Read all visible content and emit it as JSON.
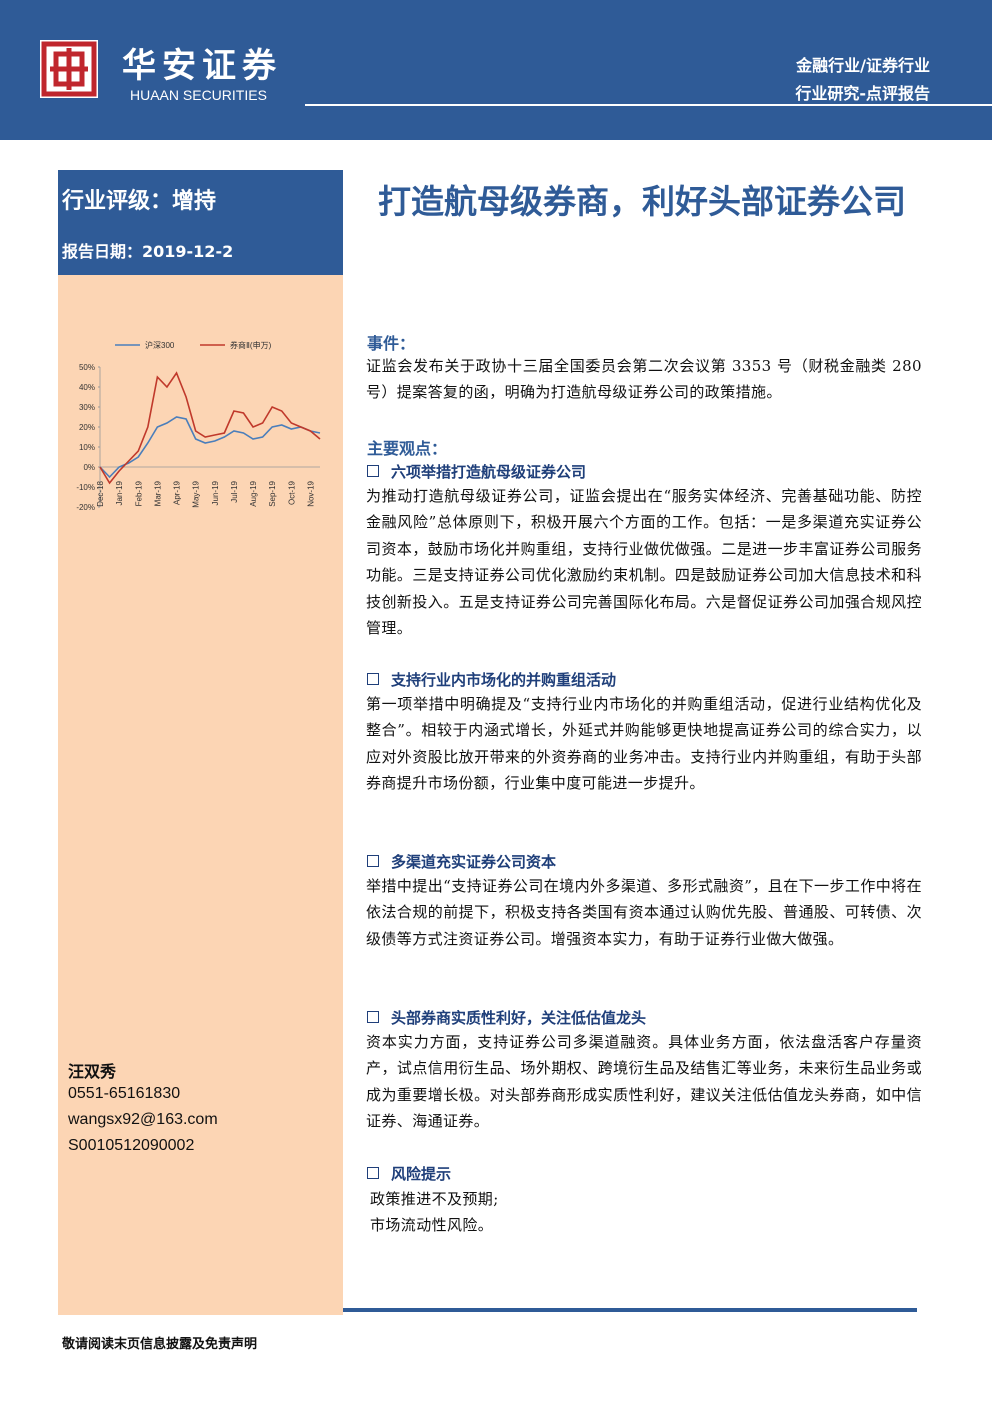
{
  "header": {
    "logo_cn": "华安证券",
    "logo_en": "HUAAN SECURITIES",
    "industry": "金融行业/证券行业",
    "report_type": "行业研究-点评报告"
  },
  "sidebar": {
    "rating": "行业评级：增持",
    "date": "报告日期：2019-12-2",
    "chart": {
      "type": "line",
      "categories": [
        "Dec-18",
        null,
        "Jan-19",
        null,
        "Feb-19",
        null,
        "Mar-19",
        null,
        "Apr-19",
        null,
        "May-19",
        null,
        "Jun-19",
        null,
        "Jul-19",
        null,
        "Aug-19",
        null,
        "Sep-19",
        null,
        "Oct-19",
        null,
        "Nov-19",
        null
      ],
      "series": [
        {
          "name": "沪深300",
          "color": "#4a7ebb",
          "values": [
            0,
            -5,
            0,
            2,
            5,
            12,
            20,
            22,
            25,
            24,
            14,
            12,
            13,
            15,
            18,
            17,
            14,
            15,
            20,
            21,
            19,
            20,
            18,
            17
          ]
        },
        {
          "name": "券商Ⅱ(申万)",
          "color": "#c0392b",
          "values": [
            0,
            -8,
            -2,
            3,
            8,
            20,
            45,
            40,
            47,
            35,
            18,
            15,
            16,
            17,
            28,
            27,
            20,
            22,
            30,
            28,
            22,
            20,
            18,
            14
          ]
        }
      ],
      "ylim": [
        -20,
        50
      ],
      "yticks": [
        {
          "value": -20,
          "label": "-20%"
        },
        {
          "value": -10,
          "label": "-10%"
        },
        {
          "value": 0,
          "label": "0%"
        },
        {
          "value": 10,
          "label": "10%"
        },
        {
          "value": 20,
          "label": "20%"
        },
        {
          "value": 30,
          "label": "30%"
        },
        {
          "value": 40,
          "label": "40%"
        },
        {
          "value": 50,
          "label": "50%"
        }
      ]
    },
    "author": {
      "name": "汪双秀",
      "phone": "0551-65161830",
      "email": "wangsx92@163.com",
      "license": "S0010512090002"
    }
  },
  "title": "打造航母级券商，利好头部证券公司",
  "event": {
    "heading": "事件：",
    "body": "证监会发布关于政协十三届全国委员会第二次会议第 3353 号（财税金融类 280 号）提案答复的函，明确为打造航母级证券公司的政策措施。"
  },
  "main": {
    "heading": "主要观点：",
    "points": [
      {
        "heading": "六项举措打造航母级证券公司",
        "body": "为推动打造航母级证券公司，证监会提出在“服务实体经济、完善基础功能、防控金融风险”总体原则下，积极开展六个方面的工作。包括：一是多渠道充实证券公司资本，鼓励市场化并购重组，支持行业做优做强。二是进一步丰富证券公司服务功能。三是支持证券公司优化激励约束机制。四是鼓励证券公司加大信息技术和科技创新投入。五是支持证券公司完善国际化布局。六是督促证券公司加强合规风控管理。"
      },
      {
        "heading": "支持行业内市场化的并购重组活动",
        "body": "第一项举措中明确提及“支持行业内市场化的并购重组活动，促进行业结构优化及整合”。相较于内涵式增长，外延式并购能够更快地提高证券公司的综合实力，以应对外资股比放开带来的外资券商的业务冲击。支持行业内并购重组，有助于头部券商提升市场份额，行业集中度可能进一步提升。"
      },
      {
        "heading": "多渠道充实证券公司资本",
        "body": "举措中提出“支持证券公司在境内外多渠道、多形式融资”，且在下一步工作中将在依法合规的前提下，积极支持各类国有资本通过认购优先股、普通股、可转债、次级债等方式注资证券公司。增强资本实力，有助于证券行业做大做强。"
      },
      {
        "heading": "头部券商实质性利好，关注低估值龙头",
        "body": "资本实力方面，支持证券公司多渠道融资。具体业务方面，依法盘活客户存量资产，试点信用衍生品、场外期权、跨境衍生品及结售汇等业务，未来衍生品业务或成为重要增长极。对头部券商形成实质性利好，建议关注低估值龙头券商，如中信证券、海通证券。"
      }
    ]
  },
  "risk": {
    "heading": "风险提示",
    "lines": [
      "政策推进不及预期;",
      "市场流动性风险。"
    ]
  },
  "footer": "敬请阅读末页信息披露及免责声明"
}
